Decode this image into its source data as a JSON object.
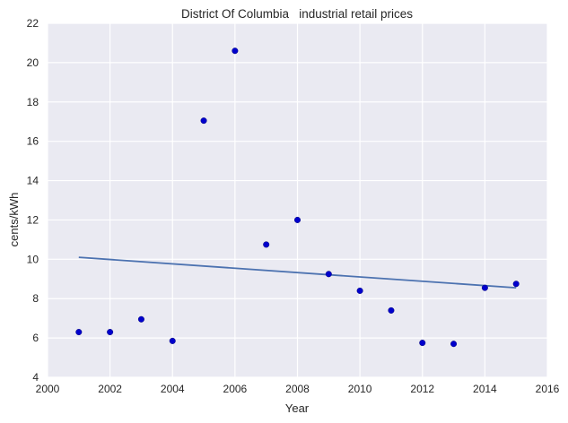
{
  "chart_data": {
    "type": "scatter",
    "title": "District Of Columbia   industrial retail prices",
    "xlabel": "Year",
    "ylabel": "cents/kWh",
    "xlim": [
      2000,
      2016
    ],
    "ylim": [
      4,
      22
    ],
    "xticks": [
      2000,
      2002,
      2004,
      2006,
      2008,
      2010,
      2012,
      2014,
      2016
    ],
    "yticks": [
      4,
      6,
      8,
      10,
      12,
      14,
      16,
      18,
      20,
      22
    ],
    "grid": true,
    "background": "#eaeaf2",
    "point_color": "#0000cc",
    "line_color": "#4c72b0",
    "points": {
      "x": [
        2001,
        2002,
        2003,
        2004,
        2005,
        2006,
        2007,
        2008,
        2009,
        2010,
        2011,
        2012,
        2013,
        2014,
        2015
      ],
      "y": [
        6.3,
        6.3,
        6.95,
        5.85,
        17.05,
        20.6,
        10.75,
        12.0,
        9.25,
        8.4,
        7.4,
        5.75,
        5.7,
        8.55,
        8.75
      ]
    },
    "trend_line": {
      "x": [
        2001,
        2015
      ],
      "y": [
        10.1,
        8.55
      ]
    }
  }
}
